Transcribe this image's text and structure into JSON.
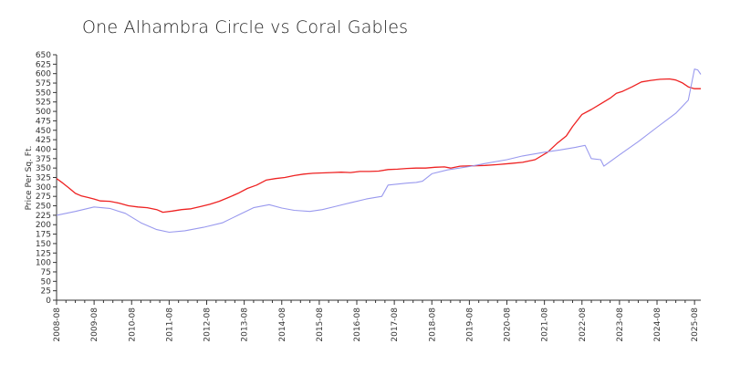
{
  "chart_data": {
    "type": "line",
    "title": "One Alhambra Circle vs Coral Gables",
    "ylabel": "Price Per Sq. Ft.",
    "xlabel": "",
    "ylim": [
      0,
      650
    ],
    "yticks": [
      0,
      25,
      50,
      75,
      100,
      125,
      150,
      175,
      200,
      225,
      250,
      275,
      300,
      325,
      350,
      375,
      400,
      425,
      450,
      475,
      500,
      525,
      550,
      575,
      600,
      625,
      650
    ],
    "xticks": [
      "2008-08",
      "2009-08",
      "2010-08",
      "2011-08",
      "2012-08",
      "2013-08",
      "2014-08",
      "2015-08",
      "2016-08",
      "2017-08",
      "2018-08",
      "2019-08",
      "2020-08",
      "2021-08",
      "2022-08",
      "2023-08",
      "2024-08",
      "2025-08"
    ],
    "x_range": [
      "2008-08",
      "2025-10"
    ],
    "legend": "none",
    "series": [
      {
        "color": "#ee2222",
        "points": [
          [
            "2008-08",
            322
          ],
          [
            "2008-10",
            310
          ],
          [
            "2008-12",
            297
          ],
          [
            "2009-02",
            283
          ],
          [
            "2009-04",
            276
          ],
          [
            "2009-06",
            272
          ],
          [
            "2009-08",
            268
          ],
          [
            "2009-10",
            263
          ],
          [
            "2010-01",
            262
          ],
          [
            "2010-04",
            257
          ],
          [
            "2010-07",
            250
          ],
          [
            "2010-10",
            247
          ],
          [
            "2011-01",
            245
          ],
          [
            "2011-04",
            240
          ],
          [
            "2011-06",
            233
          ],
          [
            "2011-09",
            236
          ],
          [
            "2011-12",
            240
          ],
          [
            "2012-03",
            242
          ],
          [
            "2012-06",
            248
          ],
          [
            "2012-09",
            254
          ],
          [
            "2012-12",
            262
          ],
          [
            "2013-03",
            272
          ],
          [
            "2013-06",
            283
          ],
          [
            "2013-09",
            296
          ],
          [
            "2013-12",
            305
          ],
          [
            "2014-03",
            318
          ],
          [
            "2014-06",
            322
          ],
          [
            "2014-09",
            325
          ],
          [
            "2014-12",
            330
          ],
          [
            "2015-03",
            334
          ],
          [
            "2015-06",
            336
          ],
          [
            "2015-09",
            337
          ],
          [
            "2015-12",
            338
          ],
          [
            "2016-03",
            339
          ],
          [
            "2016-06",
            338
          ],
          [
            "2016-09",
            341
          ],
          [
            "2016-12",
            341
          ],
          [
            "2017-03",
            342
          ],
          [
            "2017-06",
            346
          ],
          [
            "2017-09",
            347
          ],
          [
            "2017-12",
            349
          ],
          [
            "2018-03",
            350
          ],
          [
            "2018-06",
            350
          ],
          [
            "2018-09",
            352
          ],
          [
            "2018-12",
            353
          ],
          [
            "2019-02",
            350
          ],
          [
            "2019-05",
            355
          ],
          [
            "2019-09",
            356
          ],
          [
            "2020-01",
            357
          ],
          [
            "2020-05",
            359
          ],
          [
            "2020-09",
            362
          ],
          [
            "2021-01",
            365
          ],
          [
            "2021-05",
            372
          ],
          [
            "2021-09",
            392
          ],
          [
            "2021-12",
            415
          ],
          [
            "2022-03",
            435
          ],
          [
            "2022-05",
            460
          ],
          [
            "2022-08",
            492
          ],
          [
            "2022-11",
            505
          ],
          [
            "2023-02",
            520
          ],
          [
            "2023-05",
            535
          ],
          [
            "2023-07",
            548
          ],
          [
            "2023-09",
            553
          ],
          [
            "2023-12",
            565
          ],
          [
            "2024-03",
            578
          ],
          [
            "2024-06",
            582
          ],
          [
            "2024-09",
            585
          ],
          [
            "2024-12",
            586
          ],
          [
            "2025-02",
            583
          ],
          [
            "2025-04",
            576
          ],
          [
            "2025-06",
            565
          ],
          [
            "2025-08",
            560
          ],
          [
            "2025-10",
            560
          ]
        ]
      },
      {
        "color": "#9999ee",
        "points": [
          [
            "2008-08",
            225
          ],
          [
            "2009-02",
            235
          ],
          [
            "2009-08",
            247
          ],
          [
            "2010-01",
            243
          ],
          [
            "2010-06",
            230
          ],
          [
            "2010-11",
            205
          ],
          [
            "2011-04",
            187
          ],
          [
            "2011-08",
            180
          ],
          [
            "2012-01",
            184
          ],
          [
            "2012-07",
            193
          ],
          [
            "2013-01",
            205
          ],
          [
            "2013-06",
            225
          ],
          [
            "2013-11",
            245
          ],
          [
            "2014-04",
            253
          ],
          [
            "2014-08",
            244
          ],
          [
            "2014-12",
            238
          ],
          [
            "2015-05",
            235
          ],
          [
            "2015-09",
            240
          ],
          [
            "2016-01",
            248
          ],
          [
            "2016-06",
            258
          ],
          [
            "2016-11",
            268
          ],
          [
            "2017-04",
            275
          ],
          [
            "2017-06",
            305
          ],
          [
            "2017-12",
            310
          ],
          [
            "2018-03",
            312
          ],
          [
            "2018-05",
            315
          ],
          [
            "2018-08",
            335
          ],
          [
            "2019-01",
            345
          ],
          [
            "2019-08",
            354
          ],
          [
            "2020-01",
            362
          ],
          [
            "2020-08",
            372
          ],
          [
            "2021-01",
            382
          ],
          [
            "2021-08",
            392
          ],
          [
            "2022-01",
            398
          ],
          [
            "2022-06",
            405
          ],
          [
            "2022-09",
            410
          ],
          [
            "2022-11",
            375
          ],
          [
            "2023-02",
            372
          ],
          [
            "2023-03",
            355
          ],
          [
            "2023-08",
            385
          ],
          [
            "2024-02",
            420
          ],
          [
            "2024-08",
            458
          ],
          [
            "2025-02",
            495
          ],
          [
            "2025-06",
            530
          ],
          [
            "2025-08",
            612
          ],
          [
            "2025-09",
            610
          ],
          [
            "2025-10",
            598
          ]
        ]
      }
    ]
  }
}
